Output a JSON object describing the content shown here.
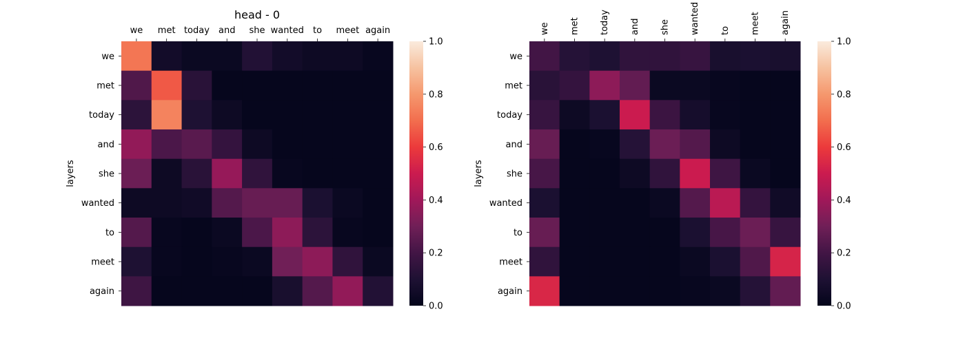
{
  "chart_data": [
    {
      "type": "heatmap",
      "title": "head - 0",
      "ylabel": "layers",
      "xlabel": "",
      "x_categories": [
        "we",
        "met",
        "today",
        "and",
        "she",
        "wanted",
        "to",
        "meet",
        "again"
      ],
      "y_categories": [
        "we",
        "met",
        "today",
        "and",
        "she",
        "wanted",
        "to",
        "meet",
        "again"
      ],
      "x_tick_rotation": 0,
      "values": [
        [
          0.72,
          0.06,
          0.03,
          0.03,
          0.11,
          0.06,
          0.04,
          0.04,
          0.02
        ],
        [
          0.23,
          0.66,
          0.13,
          0.01,
          0.01,
          0.01,
          0.01,
          0.01,
          0.01
        ],
        [
          0.14,
          0.75,
          0.1,
          0.04,
          0.01,
          0.01,
          0.01,
          0.01,
          0.01
        ],
        [
          0.37,
          0.22,
          0.25,
          0.16,
          0.04,
          0.01,
          0.01,
          0.01,
          0.01
        ],
        [
          0.29,
          0.04,
          0.13,
          0.38,
          0.15,
          0.02,
          0.01,
          0.01,
          0.01
        ],
        [
          0.04,
          0.04,
          0.05,
          0.24,
          0.28,
          0.28,
          0.09,
          0.03,
          0.01
        ],
        [
          0.24,
          0.02,
          0.01,
          0.03,
          0.22,
          0.36,
          0.14,
          0.02,
          0.01
        ],
        [
          0.1,
          0.02,
          0.01,
          0.02,
          0.03,
          0.3,
          0.36,
          0.15,
          0.03
        ],
        [
          0.19,
          0.01,
          0.01,
          0.01,
          0.01,
          0.08,
          0.24,
          0.37,
          0.11
        ]
      ],
      "colorbar": {
        "min": 0.0,
        "max": 1.0,
        "ticks": [
          "0.0",
          "0.2",
          "0.4",
          "0.6",
          "0.8",
          "1.0"
        ]
      },
      "colormap": "rocket"
    },
    {
      "type": "heatmap",
      "title": "",
      "ylabel": "layers",
      "xlabel": "",
      "x_categories": [
        "we",
        "met",
        "today",
        "and",
        "she",
        "wanted",
        "to",
        "meet",
        "again"
      ],
      "y_categories": [
        "we",
        "met",
        "today",
        "and",
        "she",
        "wanted",
        "to",
        "meet",
        "again"
      ],
      "x_tick_rotation": -90,
      "values": [
        [
          0.2,
          0.12,
          0.1,
          0.15,
          0.15,
          0.17,
          0.08,
          0.09,
          0.08
        ],
        [
          0.13,
          0.16,
          0.36,
          0.27,
          0.03,
          0.03,
          0.02,
          0.01,
          0.01
        ],
        [
          0.17,
          0.04,
          0.09,
          0.5,
          0.18,
          0.07,
          0.02,
          0.01,
          0.01
        ],
        [
          0.28,
          0.01,
          0.02,
          0.12,
          0.29,
          0.24,
          0.04,
          0.01,
          0.01
        ],
        [
          0.21,
          0.01,
          0.01,
          0.04,
          0.15,
          0.5,
          0.19,
          0.03,
          0.01
        ],
        [
          0.09,
          0.01,
          0.01,
          0.01,
          0.03,
          0.24,
          0.46,
          0.16,
          0.05
        ],
        [
          0.28,
          0.01,
          0.01,
          0.01,
          0.01,
          0.09,
          0.21,
          0.29,
          0.17
        ],
        [
          0.15,
          0.01,
          0.01,
          0.01,
          0.01,
          0.03,
          0.09,
          0.23,
          0.53
        ],
        [
          0.54,
          0.01,
          0.01,
          0.01,
          0.01,
          0.02,
          0.03,
          0.12,
          0.27
        ]
      ],
      "colorbar": {
        "min": 0.0,
        "max": 1.0,
        "ticks": [
          "0.0",
          "0.2",
          "0.4",
          "0.6",
          "0.8",
          "1.0"
        ]
      },
      "colormap": "rocket"
    }
  ]
}
